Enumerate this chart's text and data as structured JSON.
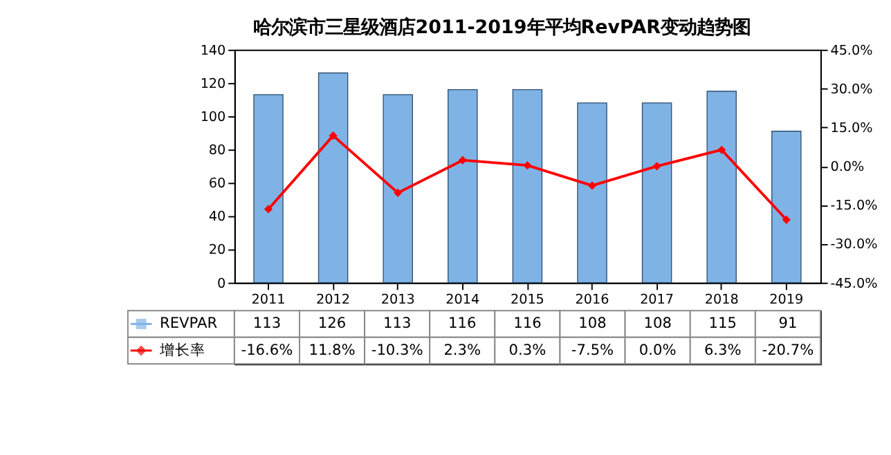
{
  "chart_data": {
    "type": "bar",
    "title": "哈尔滨市三星级酒店2011-2019年平均RevPAR变动趋势图",
    "categories": [
      "2011",
      "2012",
      "2013",
      "2014",
      "2015",
      "2016",
      "2017",
      "2018",
      "2019"
    ],
    "series": [
      {
        "name": "REVPAR",
        "color": "#7fb3e6",
        "values": [
          113,
          126,
          113,
          116,
          116,
          108,
          108,
          115,
          91
        ],
        "value_labels": [
          "113",
          "126",
          "113",
          "116",
          "116",
          "108",
          "108",
          "115",
          "91"
        ]
      },
      {
        "name": "增长率",
        "type": "line",
        "axis": "y2",
        "color": "#ff0000",
        "values": [
          -16.6,
          11.8,
          -10.3,
          2.3,
          0.3,
          -7.5,
          0.0,
          6.3,
          -20.7
        ],
        "value_labels": [
          "-16.6%",
          "11.8%",
          "-10.3%",
          "2.3%",
          "0.3%",
          "-7.5%",
          "0.0%",
          "6.3%",
          "-20.7%"
        ]
      }
    ],
    "ylim": [
      0,
      140
    ],
    "yticks": [
      0,
      20,
      40,
      60,
      80,
      100,
      120,
      140
    ],
    "y2lim": [
      -45,
      45
    ],
    "y2ticks": [
      {
        "value": -45,
        "label": "-45.0%"
      },
      {
        "value": -30,
        "label": "-30.0%"
      },
      {
        "value": -15,
        "label": "-15.0%"
      },
      {
        "value": 0,
        "label": "0.0%"
      },
      {
        "value": 15,
        "label": "15.0%"
      },
      {
        "value": 30,
        "label": "30.0%"
      },
      {
        "value": 45,
        "label": "45.0%"
      }
    ],
    "marker": "diamond",
    "line_style": "solid",
    "grid": false,
    "legend": "bottom"
  }
}
